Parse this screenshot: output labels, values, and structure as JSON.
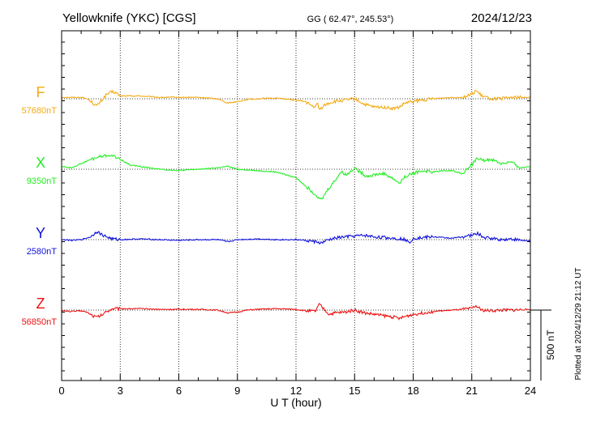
{
  "header": {
    "station": "Yellowknife (YKC)  [CGS]",
    "coords": "GG ( 62.47°, 245.53°)",
    "date": "2024/12/23"
  },
  "footer": {
    "plotted": "Plotted at 2024/12/29 21:12 UT"
  },
  "chart_data": {
    "type": "line",
    "xlabel": "U T (hour)",
    "xlim": [
      0,
      24
    ],
    "x_ticks": [
      "0",
      "3",
      "6",
      "9",
      "12",
      "15",
      "18",
      "21",
      "24"
    ],
    "grid": "dotted vertical every 3 hours",
    "scale_bar": {
      "value": 500,
      "label": "500 nT"
    },
    "y_unit": "nT",
    "series": [
      {
        "name": "F",
        "baseline_label": "57680nT",
        "baseline": 57680,
        "color": "#f4aa12",
        "hours": [
          0,
          0.5,
          1,
          1.3,
          1.6,
          1.8,
          2,
          2.3,
          2.6,
          2.8,
          3,
          3.5,
          4,
          5,
          6,
          7,
          8,
          8.5,
          9,
          9.5,
          10,
          11,
          12,
          12.5,
          12.8,
          13,
          13.1,
          13.2,
          13.4,
          13.7,
          14,
          14.5,
          15,
          15.5,
          16,
          16.5,
          17,
          17.3,
          17.6,
          18,
          18.5,
          19,
          19.5,
          20,
          20.5,
          21,
          21.2,
          21.5,
          22,
          22.5,
          23,
          24
        ],
        "values": [
          57690,
          57690,
          57690,
          57680,
          57650,
          57630,
          57660,
          57710,
          57730,
          57720,
          57700,
          57700,
          57700,
          57690,
          57690,
          57690,
          57680,
          57650,
          57660,
          57675,
          57680,
          57685,
          57670,
          57660,
          57630,
          57620,
          57650,
          57600,
          57630,
          57650,
          57660,
          57670,
          57680,
          57640,
          57620,
          57620,
          57610,
          57620,
          57650,
          57660,
          57670,
          57680,
          57685,
          57690,
          57690,
          57710,
          57740,
          57700,
          57680,
          57680,
          57690,
          57690
        ]
      },
      {
        "name": "X",
        "baseline_label": "9350nT",
        "baseline": 9350,
        "color": "#22ee22",
        "hours": [
          0,
          0.5,
          1,
          1.5,
          2,
          2.5,
          3,
          3.5,
          4,
          5,
          6,
          7,
          8,
          8.5,
          9,
          10,
          11,
          11.5,
          12,
          12.5,
          13,
          13.3,
          13.6,
          14,
          14.3,
          14.6,
          15,
          15.3,
          15.6,
          16,
          16.5,
          17,
          17.3,
          17.6,
          18,
          18.5,
          19,
          19.5,
          20,
          20.5,
          21,
          21.3,
          21.6,
          22,
          22.5,
          23,
          23.5,
          24
        ],
        "values": [
          9370,
          9360,
          9390,
          9420,
          9440,
          9450,
          9420,
          9380,
          9370,
          9350,
          9340,
          9350,
          9360,
          9370,
          9350,
          9340,
          9330,
          9310,
          9290,
          9230,
          9170,
          9130,
          9200,
          9270,
          9330,
          9310,
          9360,
          9330,
          9300,
          9310,
          9320,
          9280,
          9250,
          9300,
          9320,
          9340,
          9330,
          9340,
          9340,
          9320,
          9380,
          9430,
          9410,
          9420,
          9390,
          9400,
          9360,
          9370
        ]
      },
      {
        "name": "Y",
        "baseline_label": "2580nT",
        "baseline": 2580,
        "color": "#1111dd",
        "hours": [
          0,
          0.5,
          1,
          1.5,
          1.8,
          2,
          2.3,
          2.6,
          3,
          4,
          5,
          6,
          7,
          8,
          8.5,
          9,
          10,
          11,
          12,
          12.5,
          13,
          13.3,
          13.6,
          14,
          14.5,
          15,
          15.5,
          16,
          16.5,
          17,
          17.5,
          17.8,
          18,
          18.5,
          19,
          20,
          20.5,
          21,
          21.3,
          21.6,
          22,
          22.5,
          23,
          23.5,
          24
        ],
        "values": [
          2580,
          2575,
          2580,
          2600,
          2640,
          2620,
          2600,
          2585,
          2580,
          2585,
          2580,
          2575,
          2580,
          2580,
          2565,
          2580,
          2585,
          2580,
          2580,
          2575,
          2565,
          2555,
          2575,
          2590,
          2600,
          2605,
          2610,
          2600,
          2595,
          2590,
          2585,
          2560,
          2590,
          2595,
          2600,
          2590,
          2600,
          2610,
          2625,
          2595,
          2590,
          2580,
          2585,
          2575,
          2570
        ]
      },
      {
        "name": "Z",
        "baseline_label": "56850nT",
        "baseline": 56850,
        "color": "#ee1111",
        "hours": [
          0,
          0.5,
          1,
          1.3,
          1.6,
          1.8,
          2,
          2.3,
          2.6,
          3,
          4,
          5,
          6,
          7,
          8,
          8.5,
          9,
          9.5,
          10,
          11,
          12,
          12.5,
          13,
          13.1,
          13.2,
          13.4,
          13.7,
          14,
          14.5,
          15,
          15.5,
          16,
          16.5,
          17,
          17.3,
          17.6,
          18,
          18.5,
          19,
          19.5,
          20,
          20.5,
          21,
          21.2,
          21.5,
          22,
          22.5,
          23,
          24
        ],
        "values": [
          56845,
          56840,
          56845,
          56835,
          56810,
          56800,
          56810,
          56840,
          56860,
          56860,
          56860,
          56855,
          56855,
          56855,
          56850,
          56830,
          56835,
          56850,
          56855,
          56860,
          56855,
          56845,
          56840,
          56870,
          56890,
          56860,
          56820,
          56830,
          56835,
          56850,
          56830,
          56820,
          56810,
          56800,
          56790,
          56805,
          56820,
          56830,
          56840,
          56845,
          56850,
          56855,
          56860,
          56880,
          56850,
          56845,
          56850,
          56850,
          56855
        ]
      }
    ]
  }
}
